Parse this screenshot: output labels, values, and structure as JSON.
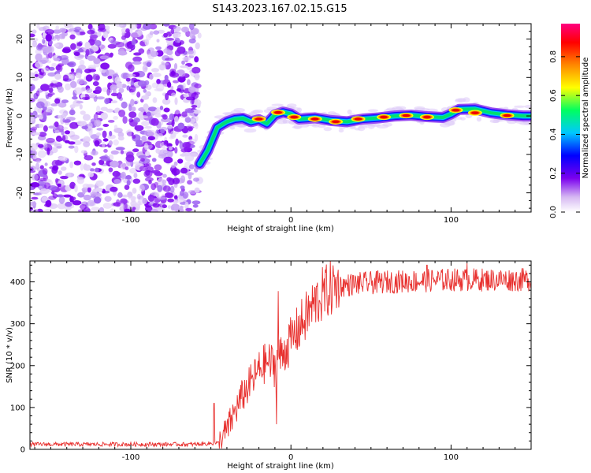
{
  "title": "S143.2023.167.02.15.G15",
  "chart_data": [
    {
      "type": "heatmap",
      "xlabel": "Height of straight line (km)",
      "ylabel": "Frequency (Hz)",
      "xlim": [
        -163,
        150
      ],
      "ylim": [
        -25,
        24
      ],
      "xticks": [
        -100,
        0,
        100
      ],
      "yticks": [
        -20,
        -10,
        0,
        10,
        20
      ],
      "colorbar": {
        "label": "Normalized spectral amplitude",
        "range": [
          0,
          0.97
        ],
        "ticks": [
          0.0,
          0.2,
          0.4,
          0.6,
          0.8
        ]
      },
      "noise_region_x": [
        -163,
        -57
      ],
      "signal_track": [
        [
          -57,
          -12.5
        ],
        [
          -52,
          -9
        ],
        [
          -46,
          -3
        ],
        [
          -40,
          -1.5
        ],
        [
          -35,
          -0.8
        ],
        [
          -30,
          -0.6
        ],
        [
          -25,
          -1.5
        ],
        [
          -20,
          -1
        ],
        [
          -15,
          -2
        ],
        [
          -10,
          0.3
        ],
        [
          -5,
          1
        ],
        [
          0,
          0.5
        ],
        [
          5,
          -0.8
        ],
        [
          15,
          -0.5
        ],
        [
          25,
          -1.2
        ],
        [
          35,
          -1.5
        ],
        [
          45,
          -0.8
        ],
        [
          55,
          -0.5
        ],
        [
          65,
          0
        ],
        [
          75,
          0.2
        ],
        [
          85,
          -0.2
        ],
        [
          95,
          -0.4
        ],
        [
          100,
          0.5
        ],
        [
          105,
          1.7
        ],
        [
          115,
          1.8
        ],
        [
          125,
          0.8
        ],
        [
          135,
          0.3
        ],
        [
          145,
          0
        ],
        [
          150,
          0
        ]
      ],
      "hot_spots": [
        [
          -20,
          -0.8
        ],
        [
          -8,
          0.9
        ],
        [
          2,
          -0.3
        ],
        [
          15,
          -0.8
        ],
        [
          28,
          -1.5
        ],
        [
          42,
          -0.8
        ],
        [
          58,
          -0.3
        ],
        [
          72,
          0.1
        ],
        [
          85,
          -0.3
        ],
        [
          103,
          1.5
        ],
        [
          115,
          0.8
        ],
        [
          135,
          0.1
        ]
      ]
    },
    {
      "type": "line",
      "xlabel": "Height of straight line (km)",
      "ylabel": "SNR (10 * v/v)",
      "xlim": [
        -163,
        150
      ],
      "ylim": [
        0,
        450
      ],
      "xticks": [
        -100,
        0,
        100
      ],
      "yticks": [
        0,
        100,
        200,
        300,
        400
      ],
      "series_color": "#e8302e",
      "trend": [
        [
          -163,
          12
        ],
        [
          -60,
          12
        ],
        [
          -45,
          15
        ],
        [
          -40,
          45
        ],
        [
          -35,
          90
        ],
        [
          -30,
          130
        ],
        [
          -25,
          160
        ],
        [
          -20,
          190
        ],
        [
          -15,
          210
        ],
        [
          -10,
          200
        ],
        [
          -5,
          230
        ],
        [
          0,
          260
        ],
        [
          5,
          290
        ],
        [
          10,
          320
        ],
        [
          15,
          350
        ],
        [
          20,
          370
        ],
        [
          25,
          385
        ],
        [
          30,
          390
        ],
        [
          40,
          395
        ],
        [
          60,
          400
        ],
        [
          80,
          402
        ],
        [
          100,
          405
        ],
        [
          120,
          405
        ],
        [
          150,
          405
        ]
      ],
      "peaks": [
        [
          -8,
          378
        ],
        [
          110,
          445
        ],
        [
          85,
          440
        ],
        [
          -9,
          60
        ],
        [
          -48,
          110
        ]
      ]
    }
  ]
}
